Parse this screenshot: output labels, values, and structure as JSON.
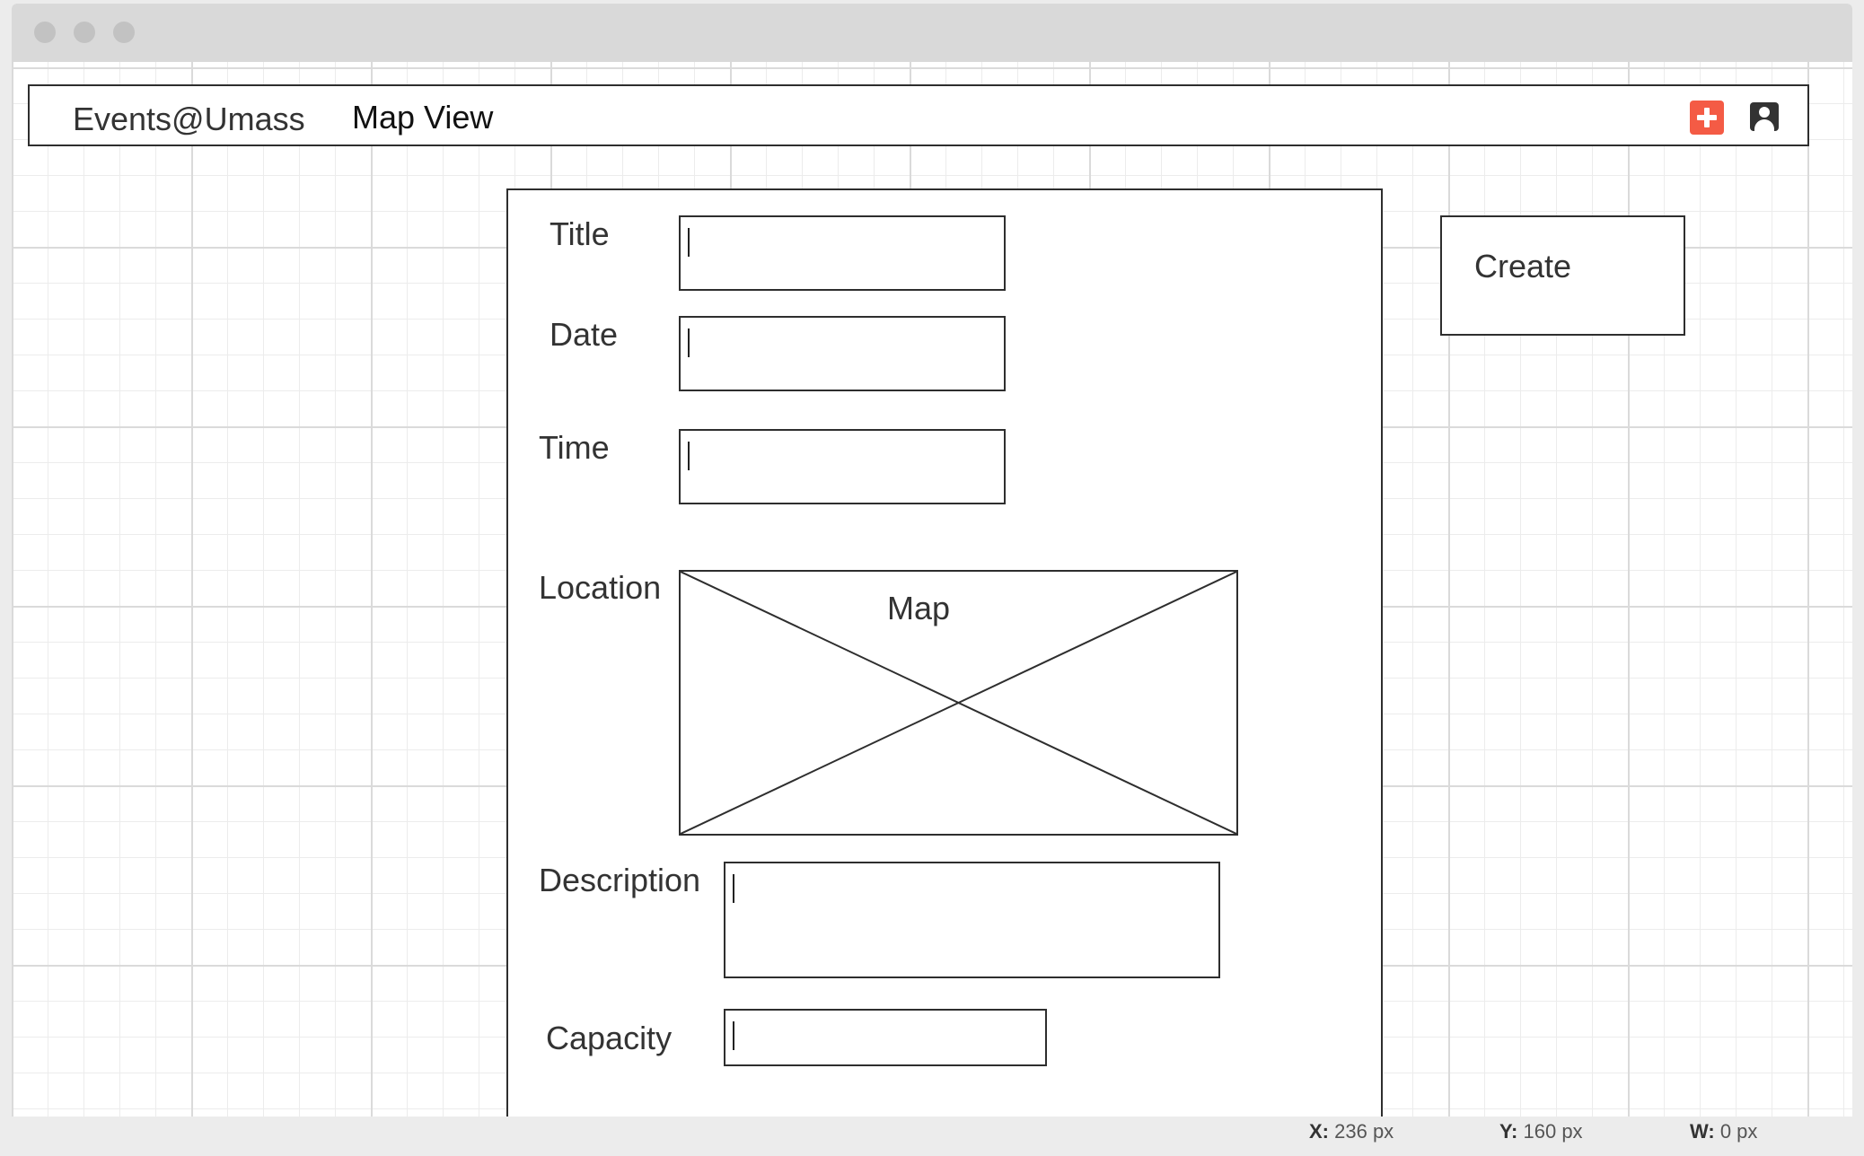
{
  "window": {
    "controls": [
      "close",
      "minimize",
      "maximize"
    ]
  },
  "navbar": {
    "brand": "Events@Umass",
    "map_view_link": "Map View",
    "add_icon": "plus-icon",
    "user_icon": "user-icon",
    "colors": {
      "add_button": "#f45b45",
      "user_icon": "#333333"
    }
  },
  "form": {
    "title_label": "Title",
    "date_label": "Date",
    "time_label": "Time",
    "location_label": "Location",
    "map_label": "Map",
    "description_label": "Description",
    "capacity_label": "Capacity",
    "title_value": "",
    "date_value": "",
    "time_value": "",
    "description_value": "",
    "capacity_value": ""
  },
  "create_button": {
    "label": "Create"
  },
  "status": {
    "x_label": "X:",
    "x_value": "236 px",
    "y_label": "Y:",
    "y_value": "160 px",
    "w_label": "W:",
    "w_value": "0 px"
  }
}
